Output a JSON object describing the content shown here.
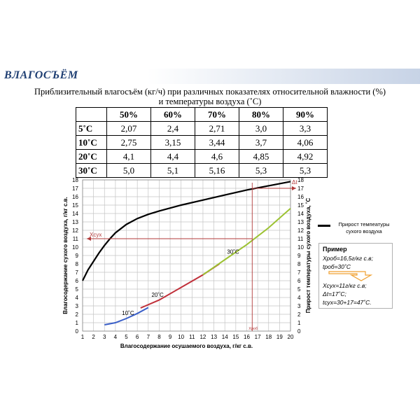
{
  "header": {
    "title": "ВЛАГОСЪЁМ"
  },
  "caption": {
    "line1": "Приблизительный влагосъём (кг/ч) при различных показателях относительной влажности (%)",
    "line2": "и температуры воздуха (˚С)"
  },
  "table": {
    "columns": [
      "50%",
      "60%",
      "70%",
      "80%",
      "90%"
    ],
    "rows": [
      {
        "label": "5˚С",
        "values": [
          "2,07",
          "2,4",
          "2,71",
          "3,0",
          "3,3"
        ]
      },
      {
        "label": "10˚С",
        "values": [
          "2,75",
          "3,15",
          "3,44",
          "3,7",
          "4,06"
        ]
      },
      {
        "label": "20˚С",
        "values": [
          "4,1",
          "4,4",
          "4,6",
          "4,85",
          "4,92"
        ]
      },
      {
        "label": "30˚С",
        "values": [
          "5,0",
          "5,1",
          "5,16",
          "5,3",
          "5,3"
        ]
      }
    ]
  },
  "chart_data": {
    "type": "line",
    "xlabel": "Влагосодержание осушаемого воздуха, г/кг с.в.",
    "ylabel_left": "Влагосодержание сухого воздуха, г/кг с.в.",
    "ylabel_right": "Прирост температуры сухого воздуха, ˚С",
    "xlim": [
      1,
      20
    ],
    "ylim": [
      0,
      18
    ],
    "x_ticks": [
      "1",
      "2",
      "3",
      "4",
      "5",
      "6",
      "7",
      "8",
      "9",
      "10",
      "11",
      "12",
      "13",
      "14",
      "15",
      "16",
      "17",
      "18",
      "19",
      "20"
    ],
    "y_ticks": [
      "0",
      "1",
      "2",
      "3",
      "4",
      "5",
      "6",
      "7",
      "8",
      "9",
      "10",
      "11",
      "12",
      "13",
      "14",
      "15",
      "16",
      "17",
      "18"
    ],
    "grid": true,
    "series": [
      {
        "color": "#000000",
        "points": [
          [
            1,
            6
          ],
          [
            1.5,
            7.3
          ],
          [
            2,
            8.3
          ],
          [
            2.5,
            9.3
          ],
          [
            3,
            10.2
          ],
          [
            3.5,
            11
          ],
          [
            4,
            11.7
          ],
          [
            5,
            12.7
          ],
          [
            6,
            13.4
          ],
          [
            7,
            13.9
          ],
          [
            8,
            14.3
          ],
          [
            10,
            15
          ],
          [
            12,
            15.6
          ],
          [
            14,
            16.2
          ],
          [
            16,
            16.8
          ],
          [
            18,
            17.3
          ],
          [
            20,
            17.8
          ]
        ]
      },
      {
        "color": "#3a5fc8",
        "points": [
          [
            3,
            0.75
          ],
          [
            4,
            1
          ],
          [
            5,
            1.5
          ],
          [
            6,
            2.1
          ],
          [
            7,
            2.8
          ]
        ]
      },
      {
        "color": "#c0303a",
        "points": [
          [
            6.3,
            2.75
          ],
          [
            8,
            3.7
          ],
          [
            10,
            5.2
          ],
          [
            12,
            6.7
          ],
          [
            13.5,
            8
          ]
        ]
      },
      {
        "color": "#9cc232",
        "points": [
          [
            12,
            6.7
          ],
          [
            14,
            8.5
          ],
          [
            16,
            10.3
          ],
          [
            18,
            12.3
          ],
          [
            20,
            14.6
          ]
        ]
      }
    ],
    "annotations": {
      "t10": "10˚С",
      "t20": "20˚С",
      "t30": "30˚С",
      "xcyx": "Xсух",
      "xpob": "Xроб",
      "dt": "Δt"
    },
    "example_point": {
      "x_in": 16.5,
      "x_dry": 11,
      "dt": 17
    }
  },
  "legend": {
    "text": "Прирост темпеатуры сухого воздуха"
  },
  "example": {
    "title": "Пример",
    "lines": [
      "Xроб=16,5г/кг с.в;",
      "tроб=30˚С",
      "Xсух=11г/кг с.в;",
      "Δt=17˚С;",
      "tсух=30+17=47˚С."
    ]
  }
}
